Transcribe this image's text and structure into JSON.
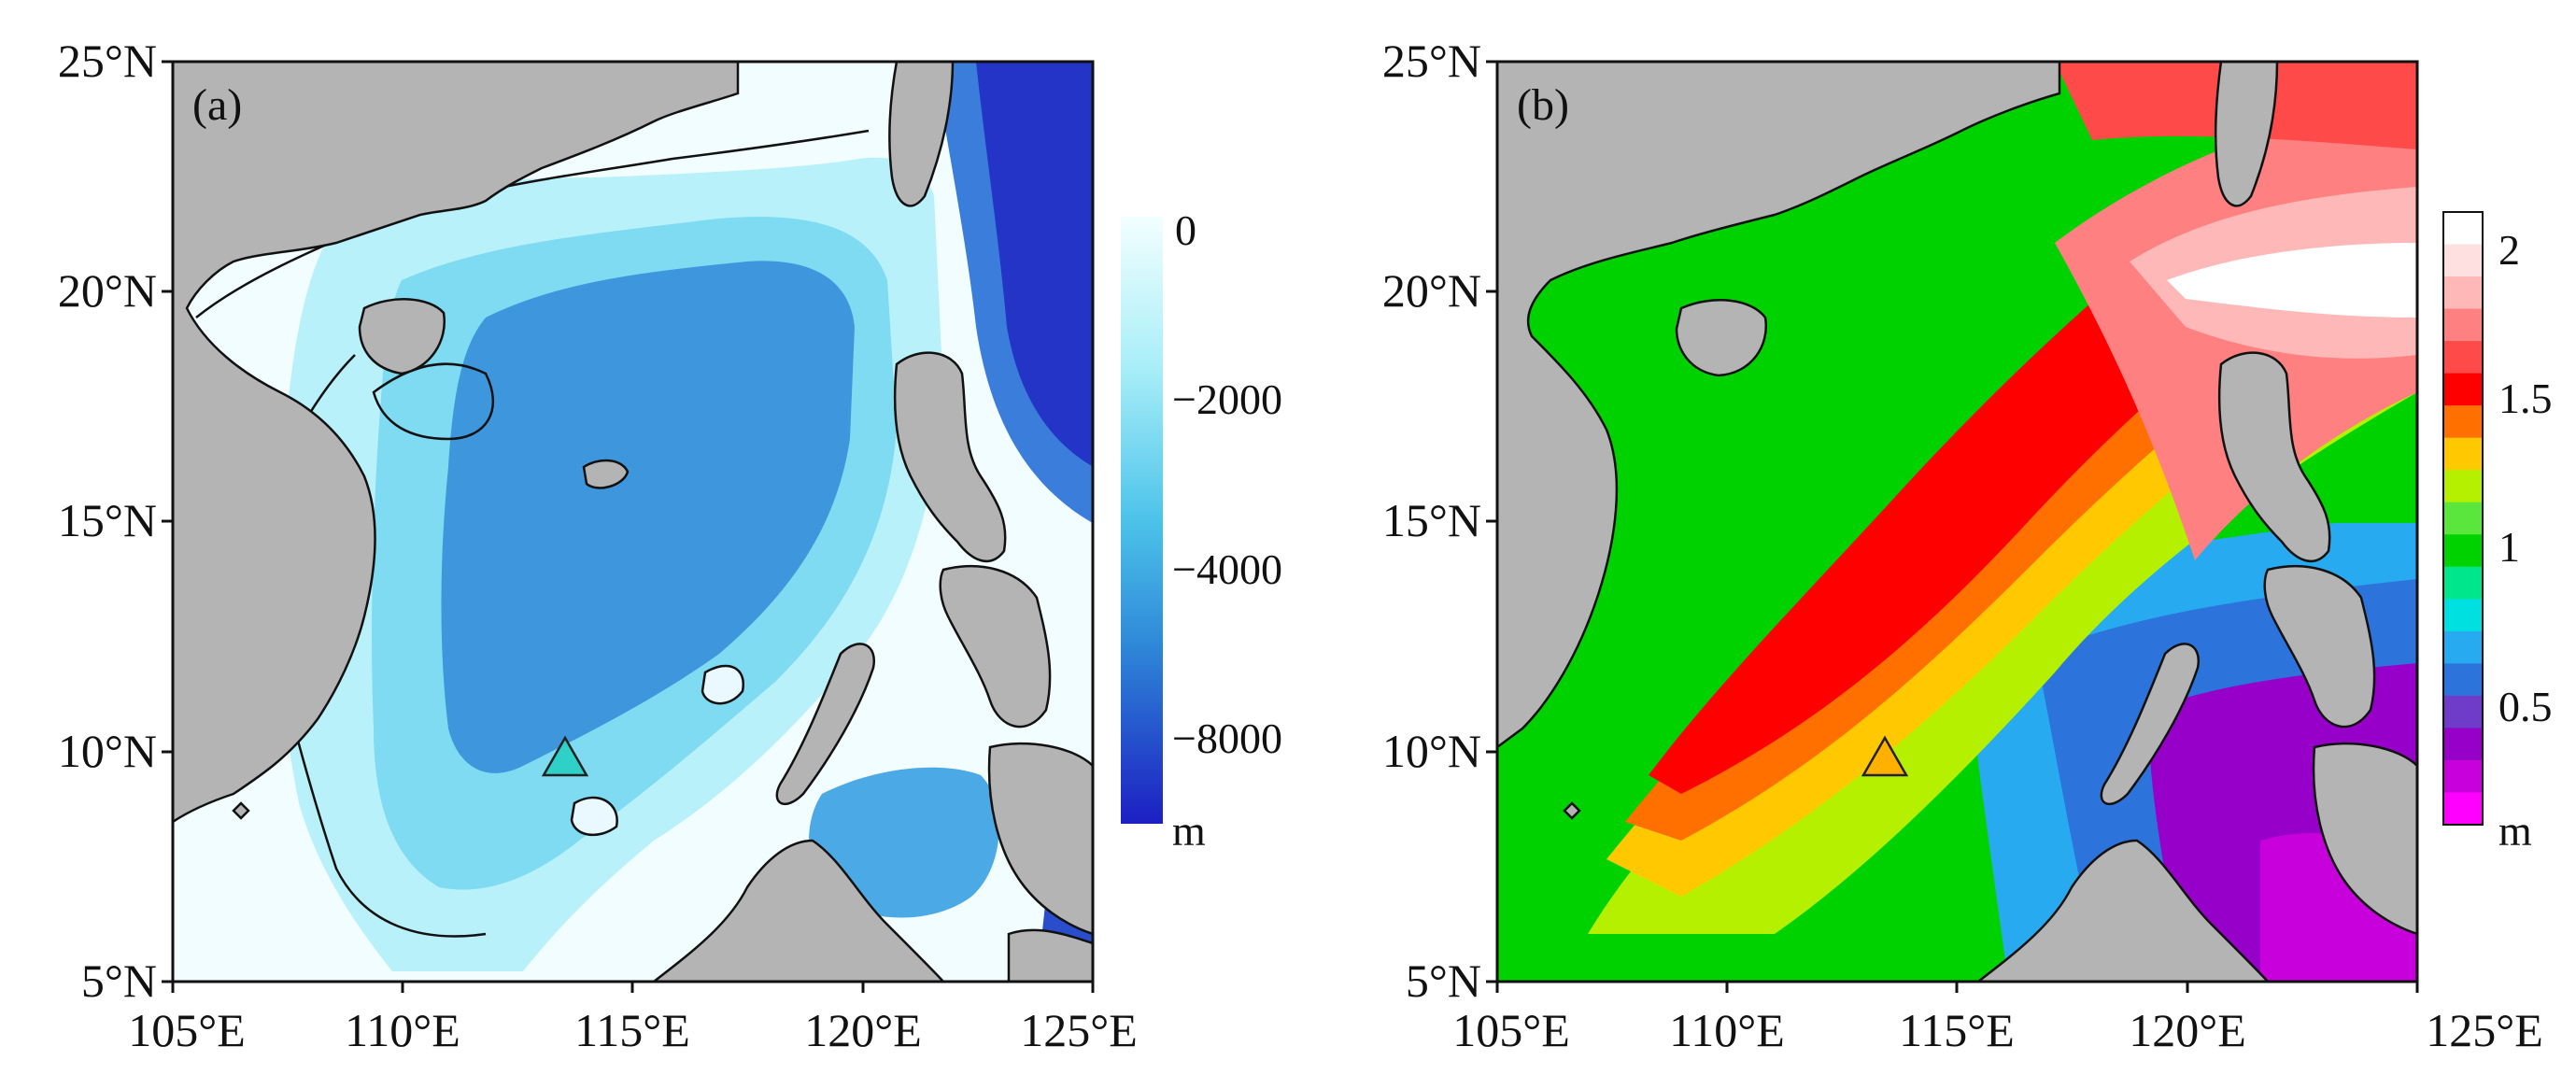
{
  "panels": [
    {
      "tag": "(a)",
      "x_ticks": [
        "105°E",
        "110°E",
        "115°E",
        "120°E",
        "125°E"
      ],
      "y_ticks": [
        "25°N",
        "20°N",
        "15°N",
        "10°N",
        "5°N"
      ],
      "colorbar": {
        "labels": [
          "0",
          "−2000",
          "−4000",
          "−8000"
        ],
        "unit": "m",
        "colors_top_to_bottom": [
          "#f2ffff",
          "#b0f2f8",
          "#5fd2ec",
          "#39a6e0",
          "#2a62d0",
          "#1c1fc2"
        ]
      }
    },
    {
      "tag": "(b)",
      "x_ticks": [
        "105°E",
        "110°E",
        "115°E",
        "120°E",
        "125°E"
      ],
      "y_ticks": [
        "25°N",
        "20°N",
        "15°N",
        "10°N",
        "5°N"
      ],
      "colorbar": {
        "labels": [
          "2",
          "1.5",
          "1",
          "0.5"
        ],
        "unit": "m",
        "colors_top_to_bottom": [
          "#ffffff",
          "#ffe0e0",
          "#ffb8b8",
          "#ff8080",
          "#ff4a4a",
          "#ff0000",
          "#ff7000",
          "#ffc800",
          "#b4f000",
          "#5ae63c",
          "#00d200",
          "#00e68c",
          "#00e0e0",
          "#28aaf0",
          "#2d73dc",
          "#6e3cc8",
          "#9600c8",
          "#c800dc",
          "#ff00ff"
        ]
      }
    }
  ],
  "colors": {
    "land": "#b4b4b4",
    "deep_blue": "#2b5fd0",
    "shelf": "#f1fdff",
    "marker": "#2fd0c8"
  }
}
